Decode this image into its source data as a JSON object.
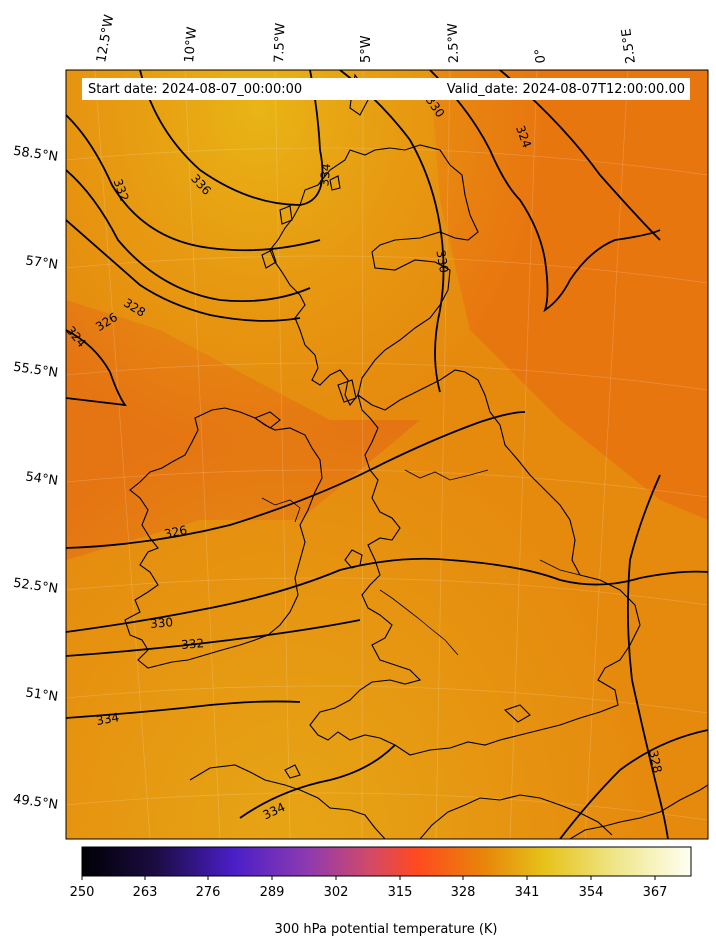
{
  "header": {
    "start_date": "Start date: 2024-08-07_00:00:00",
    "valid_date": "Valid_date: 2024-08-07T12:00:00.00"
  },
  "longitude_labels": [
    "12.5°W",
    "10°W",
    "7.5°W",
    "5°W",
    "2.5°W",
    "0°",
    "2.5°E"
  ],
  "latitude_labels": [
    "58.5°N",
    "57°N",
    "55.5°N",
    "54°N",
    "52.5°N",
    "51°N",
    "49.5°N"
  ],
  "contour_labels": [
    "324",
    "328",
    "326",
    "332",
    "336",
    "334",
    "330",
    "324",
    "330",
    "326",
    "330",
    "332",
    "334",
    "334",
    "328"
  ],
  "colorbar": {
    "label": "300 hPa potential temperature (K)",
    "ticks": [
      "250",
      "263",
      "276",
      "289",
      "302",
      "315",
      "328",
      "341",
      "354",
      "367"
    ],
    "colormap": [
      "#000004",
      "#1b0c41",
      "#4a1fc8",
      "#8e3ab0",
      "#d04a6a",
      "#ff4a1f",
      "#e8850a",
      "#e6c21a",
      "#efe78c",
      "#fffff2"
    ]
  },
  "map": {
    "field_colors": [
      "#e3a012",
      "#e8850c",
      "#e67212",
      "#e5920c"
    ],
    "contour_color": "#000000"
  }
}
